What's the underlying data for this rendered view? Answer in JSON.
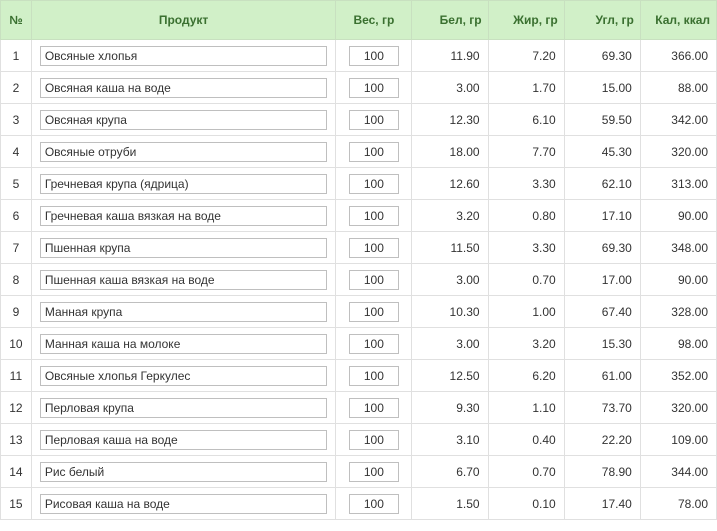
{
  "headers": {
    "num": "№",
    "product": "Продукт",
    "weight": "Вес, гр",
    "protein": "Бел, гр",
    "fat": "Жир, гр",
    "carb": "Угл, гр",
    "cal": "Кал, ккал"
  },
  "rows": [
    {
      "num": "1",
      "product": "Овсяные хлопья",
      "weight": "100",
      "protein": "11.90",
      "fat": "7.20",
      "carb": "69.30",
      "cal": "366.00"
    },
    {
      "num": "2",
      "product": "Овсяная каша на воде",
      "weight": "100",
      "protein": "3.00",
      "fat": "1.70",
      "carb": "15.00",
      "cal": "88.00"
    },
    {
      "num": "3",
      "product": "Овсяная крупа",
      "weight": "100",
      "protein": "12.30",
      "fat": "6.10",
      "carb": "59.50",
      "cal": "342.00"
    },
    {
      "num": "4",
      "product": "Овсяные отруби",
      "weight": "100",
      "protein": "18.00",
      "fat": "7.70",
      "carb": "45.30",
      "cal": "320.00"
    },
    {
      "num": "5",
      "product": "Гречневая крупа (ядрица)",
      "weight": "100",
      "protein": "12.60",
      "fat": "3.30",
      "carb": "62.10",
      "cal": "313.00"
    },
    {
      "num": "6",
      "product": "Гречневая каша вязкая на воде",
      "weight": "100",
      "protein": "3.20",
      "fat": "0.80",
      "carb": "17.10",
      "cal": "90.00"
    },
    {
      "num": "7",
      "product": "Пшенная крупа",
      "weight": "100",
      "protein": "11.50",
      "fat": "3.30",
      "carb": "69.30",
      "cal": "348.00"
    },
    {
      "num": "8",
      "product": "Пшенная каша вязкая на воде",
      "weight": "100",
      "protein": "3.00",
      "fat": "0.70",
      "carb": "17.00",
      "cal": "90.00"
    },
    {
      "num": "9",
      "product": "Манная крупа",
      "weight": "100",
      "protein": "10.30",
      "fat": "1.00",
      "carb": "67.40",
      "cal": "328.00"
    },
    {
      "num": "10",
      "product": "Манная каша на молоке",
      "weight": "100",
      "protein": "3.00",
      "fat": "3.20",
      "carb": "15.30",
      "cal": "98.00"
    },
    {
      "num": "11",
      "product": "Овсяные хлопья Геркулес",
      "weight": "100",
      "protein": "12.50",
      "fat": "6.20",
      "carb": "61.00",
      "cal": "352.00"
    },
    {
      "num": "12",
      "product": "Перловая крупа",
      "weight": "100",
      "protein": "9.30",
      "fat": "1.10",
      "carb": "73.70",
      "cal": "320.00"
    },
    {
      "num": "13",
      "product": "Перловая каша на воде",
      "weight": "100",
      "protein": "3.10",
      "fat": "0.40",
      "carb": "22.20",
      "cal": "109.00"
    },
    {
      "num": "14",
      "product": "Рис белый",
      "weight": "100",
      "protein": "6.70",
      "fat": "0.70",
      "carb": "78.90",
      "cal": "344.00"
    },
    {
      "num": "15",
      "product": "Рисовая каша на воде",
      "weight": "100",
      "protein": "1.50",
      "fat": "0.10",
      "carb": "17.40",
      "cal": "78.00"
    }
  ]
}
